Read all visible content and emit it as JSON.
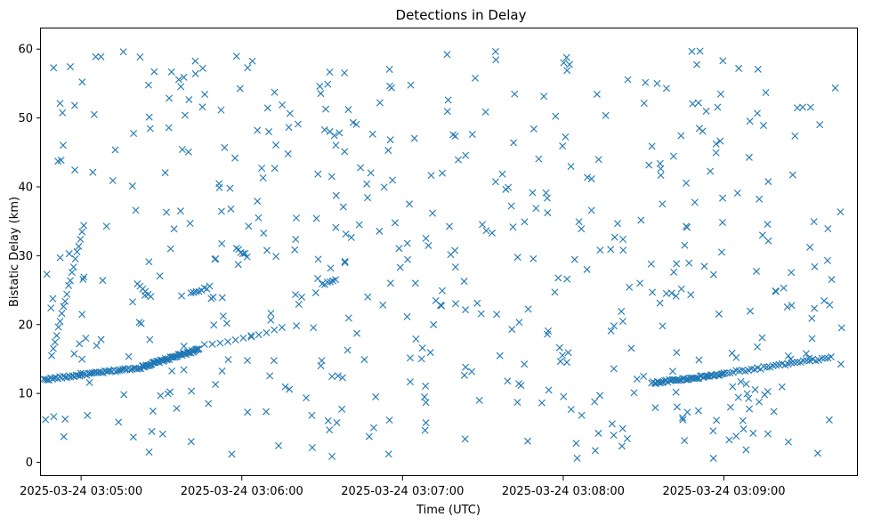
{
  "chart_data": {
    "type": "scatter",
    "title": "Detections in Delay",
    "xlabel": "Time (UTC)",
    "ylabel": "Bistatic Delay (km)",
    "marker": "x",
    "color": "#1f77b4",
    "grid": false,
    "legend": "none",
    "xlim": [
      "2025-03-24 03:04:45",
      "2025-03-24 03:09:50"
    ],
    "ylim": [
      -2,
      63
    ],
    "xticks": [
      "2025-03-24 03:05:00",
      "2025-03-24 03:06:00",
      "2025-03-24 03:07:00",
      "2025-03-24 03:08:00",
      "2025-03-24 03:09:00"
    ],
    "yticks": [
      0,
      10,
      20,
      30,
      40,
      50,
      60
    ],
    "tracks": [
      {
        "x_start": "2025-03-24 03:04:46",
        "y_start": 12.0,
        "x_end": "2025-03-24 03:05:23",
        "y_end": 13.8,
        "points": 56
      },
      {
        "x_start": "2025-03-24 03:05:23",
        "y_start": 13.9,
        "x_end": "2025-03-24 03:05:44",
        "y_end": 16.4,
        "points": 58
      },
      {
        "x_start": "2025-03-24 03:05:49",
        "y_start": 17.0,
        "x_end": "2025-03-24 03:06:15",
        "y_end": 19.5,
        "points": 10
      },
      {
        "x_start": "2025-03-24 03:08:33",
        "y_start": 11.5,
        "x_end": "2025-03-24 03:09:00",
        "y_end": 12.8,
        "points": 50
      },
      {
        "x_start": "2025-03-24 03:09:00",
        "y_start": 12.9,
        "x_end": "2025-03-24 03:09:40",
        "y_end": 15.2,
        "points": 36
      },
      {
        "x_start": "2025-03-24 03:04:49",
        "y_start": 15.5,
        "x_end": "2025-03-24 03:05:01",
        "y_end": 34.5,
        "points": 20
      },
      {
        "x_start": "2025-03-24 03:05:21",
        "y_start": 26.0,
        "x_end": "2025-03-24 03:05:26",
        "y_end": 24.0,
        "points": 6
      },
      {
        "x_start": "2025-03-24 03:05:41",
        "y_start": 24.5,
        "x_end": "2025-03-24 03:05:48",
        "y_end": 25.5,
        "points": 8
      },
      {
        "x_start": "2025-03-24 03:05:58",
        "y_start": 31.0,
        "x_end": "2025-03-24 03:06:02",
        "y_end": 30.0,
        "points": 6
      },
      {
        "x_start": "2025-03-24 03:06:30",
        "y_start": 25.8,
        "x_end": "2025-03-24 03:06:35",
        "y_end": 26.5,
        "points": 6
      }
    ],
    "scattered": {
      "count": 520,
      "x_range": [
        "2025-03-24 03:04:46",
        "2025-03-24 03:09:45"
      ],
      "y_range": [
        0.5,
        59.8
      ],
      "seed": 17
    }
  }
}
